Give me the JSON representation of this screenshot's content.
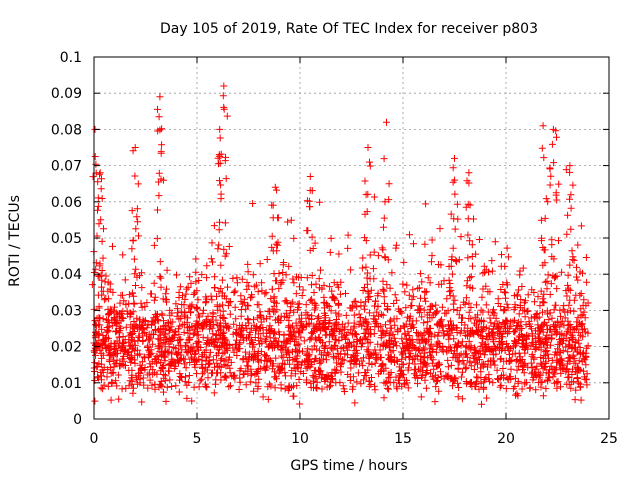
{
  "chart_data": {
    "type": "scatter",
    "title": "Day 105 of 2019, Rate Of TEC Index for receiver p803",
    "xlabel": "GPS time / hours",
    "ylabel": "ROTI / TECUs",
    "xlim": [
      0,
      25
    ],
    "ylim": [
      0,
      0.1
    ],
    "x_ticks": [
      0,
      5,
      10,
      15,
      20,
      25
    ],
    "x_tick_labels": [
      "0",
      "5",
      "10",
      "15",
      "20",
      "25"
    ],
    "y_ticks": [
      0,
      0.01,
      0.02,
      0.03,
      0.04,
      0.05,
      0.06,
      0.07,
      0.08,
      0.09,
      0.1
    ],
    "y_tick_labels": [
      "0",
      "0.01",
      "0.02",
      "0.03",
      "0.04",
      "0.05",
      "0.06",
      "0.07",
      "0.08",
      "0.09",
      "0.1"
    ],
    "grid": true,
    "marker": "+",
    "series_color": "#ff0000",
    "peaks": [
      {
        "x": 0.05,
        "y": 0.08
      },
      {
        "x": 0.3,
        "y": 0.068
      },
      {
        "x": 2.0,
        "y": 0.075
      },
      {
        "x": 3.2,
        "y": 0.089
      },
      {
        "x": 6.3,
        "y": 0.092
      },
      {
        "x": 6.1,
        "y": 0.08
      },
      {
        "x": 8.8,
        "y": 0.064
      },
      {
        "x": 10.5,
        "y": 0.067
      },
      {
        "x": 13.3,
        "y": 0.075
      },
      {
        "x": 14.2,
        "y": 0.082
      },
      {
        "x": 17.5,
        "y": 0.072
      },
      {
        "x": 18.2,
        "y": 0.068
      },
      {
        "x": 21.8,
        "y": 0.081
      },
      {
        "x": 22.3,
        "y": 0.08
      },
      {
        "x": 23.1,
        "y": 0.07
      }
    ]
  }
}
